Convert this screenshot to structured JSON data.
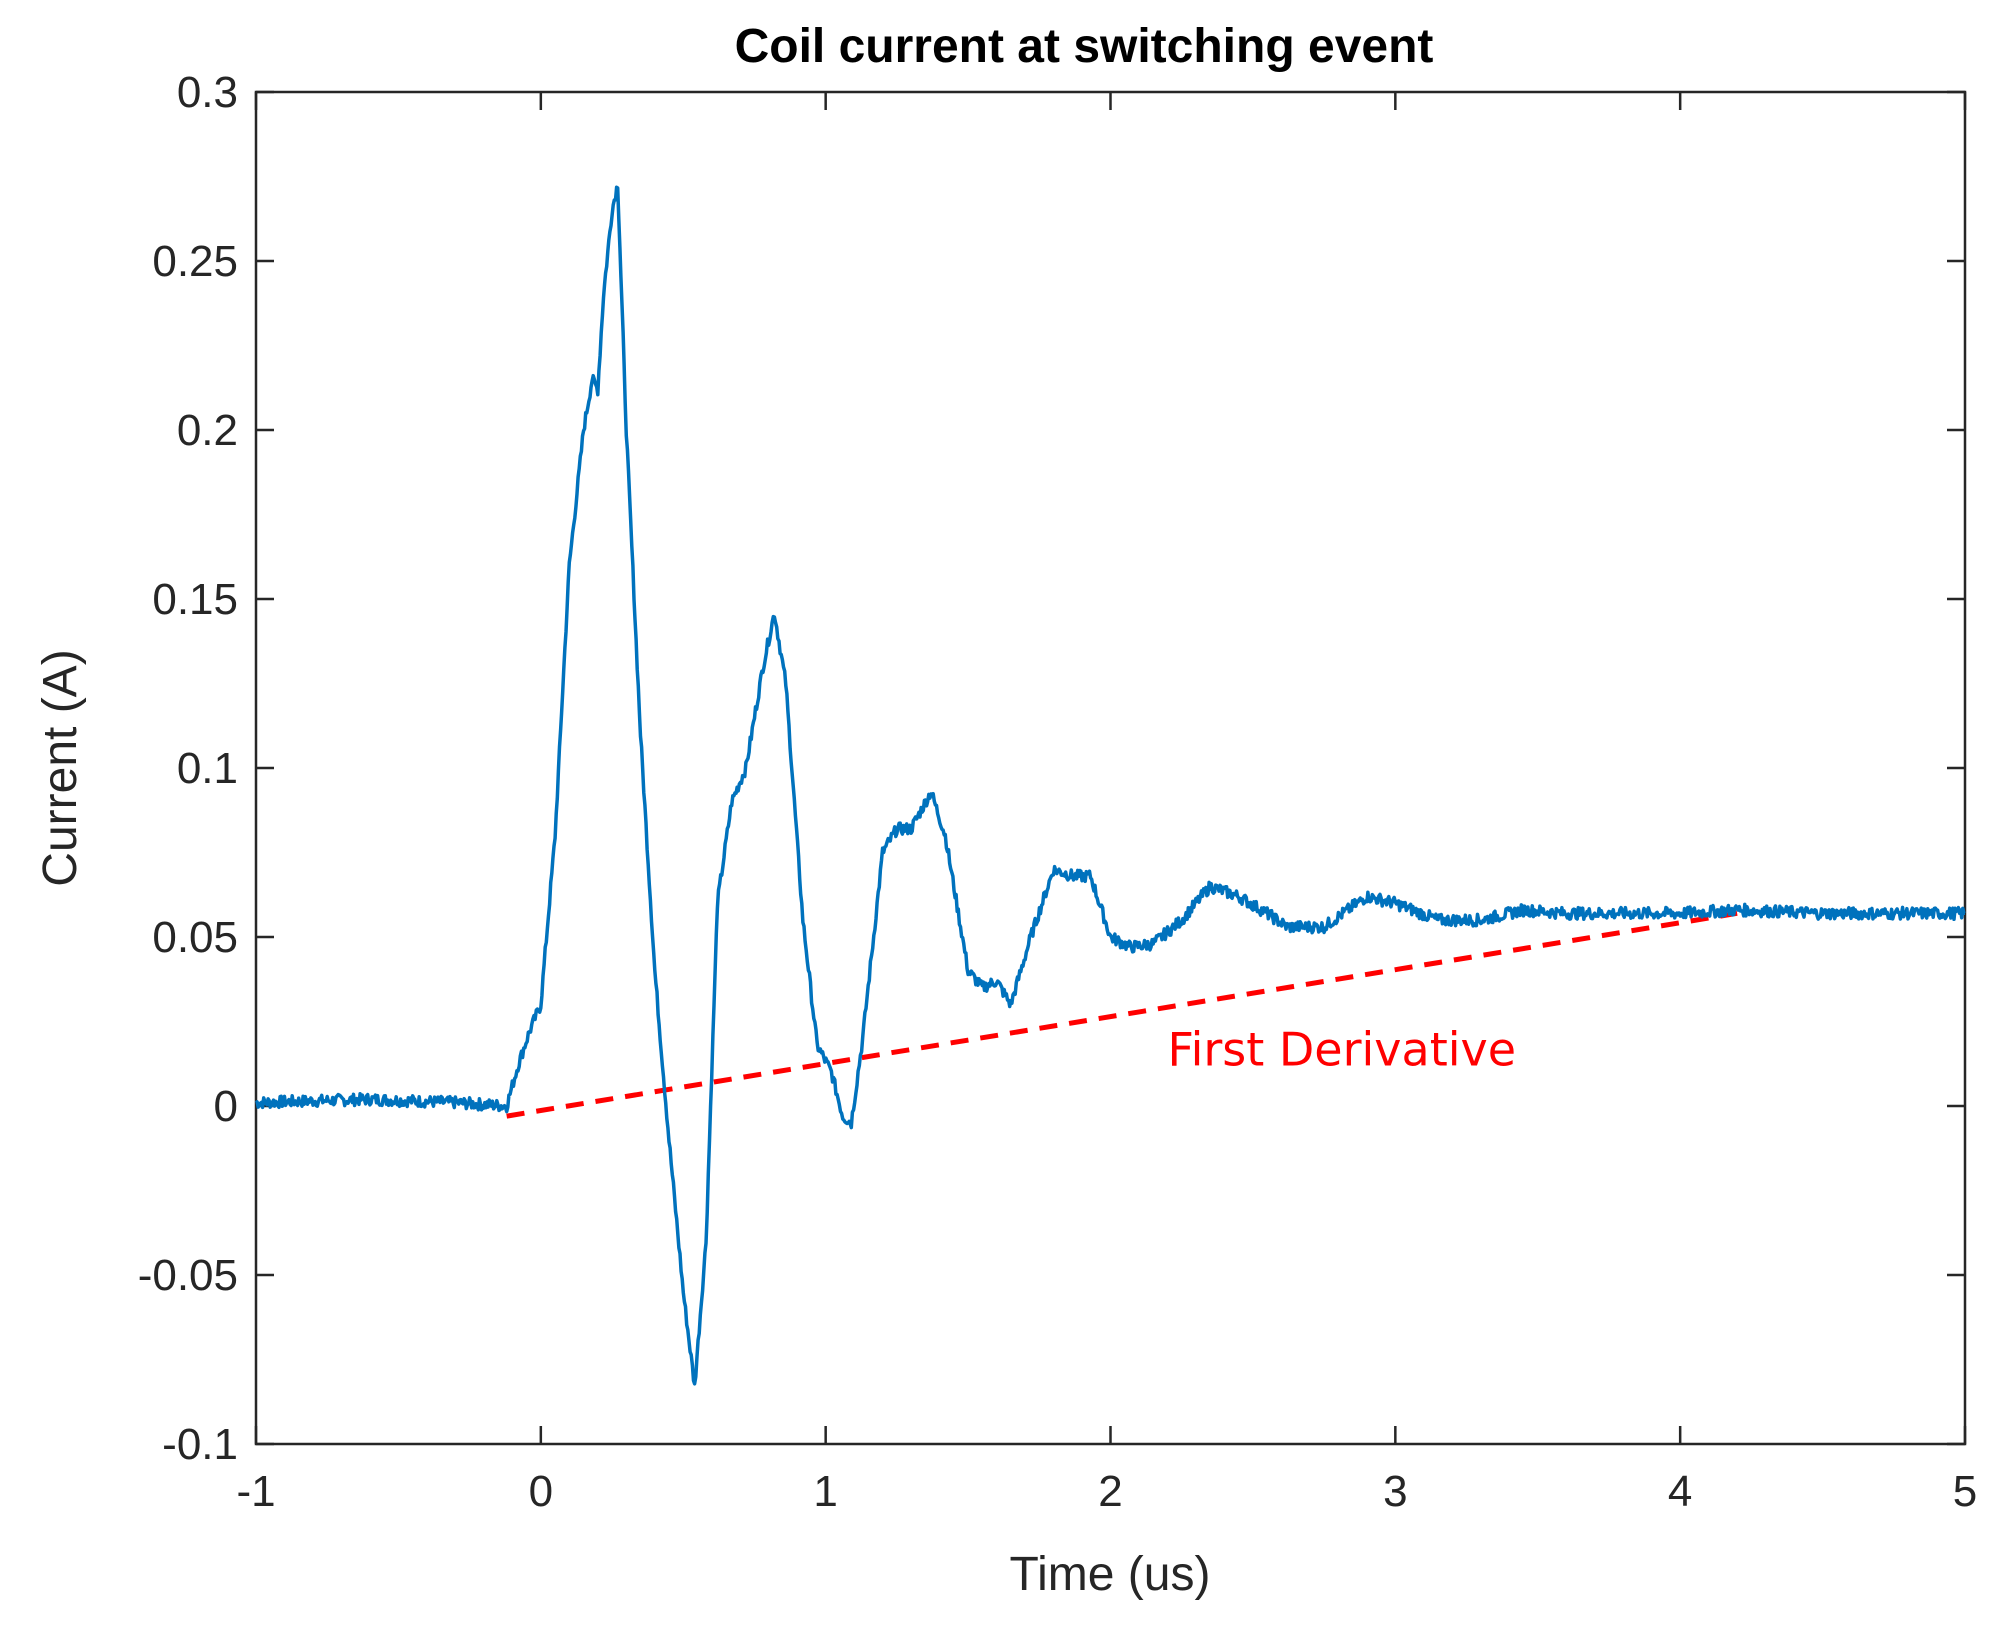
{
  "chart_data": {
    "type": "line",
    "title": "Coil current at switching event",
    "xlabel": "Time (us)",
    "ylabel": "Current (A)",
    "xlim": [
      -1,
      5
    ],
    "ylim": [
      -0.1,
      0.3
    ],
    "xticks": [
      -1,
      0,
      1,
      2,
      3,
      4,
      5
    ],
    "xtick_labels": [
      "-1",
      "0",
      "1",
      "2",
      "3",
      "4",
      "5"
    ],
    "yticks": [
      -0.1,
      -0.05,
      0,
      0.05,
      0.1,
      0.15,
      0.2,
      0.25,
      0.3
    ],
    "ytick_labels": [
      "-0.1",
      "-0.05",
      "0",
      "0.05",
      "0.1",
      "0.15",
      "0.2",
      "0.25",
      "0.3"
    ],
    "grid": false,
    "series": [
      {
        "name": "Coil current",
        "color": "#0072BD",
        "x": [
          -1,
          -0.6,
          -0.3,
          -0.12,
          -0.08,
          -0.04,
          0.0,
          0.05,
          0.1,
          0.15,
          0.18,
          0.2,
          0.22,
          0.25,
          0.27,
          0.3,
          0.35,
          0.4,
          0.45,
          0.5,
          0.54,
          0.58,
          0.62,
          0.67,
          0.72,
          0.78,
          0.82,
          0.86,
          0.92,
          0.97,
          1.02,
          1.06,
          1.09,
          1.13,
          1.2,
          1.25,
          1.3,
          1.37,
          1.42,
          1.5,
          1.55,
          1.6,
          1.65,
          1.72,
          1.8,
          1.87,
          1.93,
          2.0,
          2.07,
          2.15,
          2.25,
          2.35,
          2.45,
          2.55,
          2.62,
          2.75,
          2.9,
          3.0,
          3.15,
          3.3,
          3.45,
          3.6,
          3.8,
          4.0,
          4.2,
          4.5,
          5.0
        ],
        "y": [
          0.001,
          0.002,
          0.001,
          0.0,
          0.012,
          0.022,
          0.03,
          0.08,
          0.16,
          0.2,
          0.215,
          0.212,
          0.24,
          0.265,
          0.273,
          0.2,
          0.11,
          0.04,
          -0.01,
          -0.055,
          -0.083,
          -0.04,
          0.06,
          0.09,
          0.1,
          0.13,
          0.146,
          0.125,
          0.055,
          0.018,
          0.01,
          -0.003,
          -0.005,
          0.02,
          0.075,
          0.082,
          0.082,
          0.093,
          0.08,
          0.04,
          0.035,
          0.037,
          0.03,
          0.05,
          0.07,
          0.068,
          0.068,
          0.05,
          0.047,
          0.048,
          0.055,
          0.065,
          0.062,
          0.057,
          0.053,
          0.053,
          0.062,
          0.06,
          0.055,
          0.055,
          0.058,
          0.057,
          0.057,
          0.057,
          0.058,
          0.057,
          0.057
        ]
      }
    ],
    "reference_line": {
      "name": "First Derivative",
      "color": "#FF0000",
      "style": "dashed",
      "x": [
        -0.12,
        4.2
      ],
      "y": [
        -0.003,
        0.057
      ]
    },
    "annotations": [
      {
        "text": "First Derivative",
        "x": 2.2,
        "y": 0.012,
        "color": "#FF0000"
      }
    ]
  }
}
